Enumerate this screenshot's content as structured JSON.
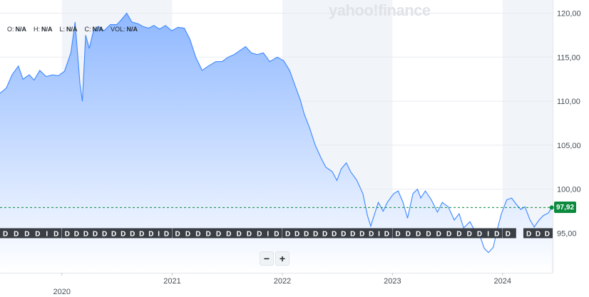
{
  "watermark": "yahoo!finance",
  "ohlc": {
    "open_label": "O:",
    "open_value": "N/A",
    "high_label": "H:",
    "high_value": "N/A",
    "low_label": "L:",
    "low_value": "N/A",
    "close_label": "C:",
    "close_value": "N/A",
    "vol_label": "VOL:",
    "vol_value": "N/A"
  },
  "zoom": {
    "minus": "−",
    "plus": "+"
  },
  "last_price": "97,92",
  "event_groups": [
    {
      "from": "2019-06-10",
      "to": "2019-12-31",
      "label": "D D D D I D"
    },
    {
      "from": "2020-01-01",
      "to": "2020-12-31",
      "label": "D D D D D D D D D D I D"
    },
    {
      "from": "2021-01-01",
      "to": "2021-12-31",
      "label": "D D D D D D D D D I D"
    },
    {
      "from": "2022-01-01",
      "to": "2022-12-31",
      "label": "D D D D D D D D D D I D"
    },
    {
      "from": "2023-01-01",
      "to": "2023-12-31",
      "label": "D D D D D D D D D I D"
    },
    {
      "from": "2024-01-01",
      "to": "2024-02-15",
      "label": "D"
    },
    {
      "from": "2024-03-10",
      "to": "2024-06-15",
      "label": "D D D"
    }
  ],
  "chart_data": {
    "type": "area",
    "xlabels": [
      "2020",
      "2021",
      "2022",
      "2023",
      "2024"
    ],
    "ylabels": [
      "95,00",
      "100,00",
      "105,00",
      "110,00",
      "115,00",
      "120,00"
    ],
    "ylim": [
      90.5,
      121.5
    ],
    "xlim": [
      "2019-06-10",
      "2024-06-15"
    ],
    "last_value": 97.92,
    "colors": {
      "line": "#3d88ff",
      "fill_top": "#8fb8ff",
      "fill_bottom": "#ffffff",
      "last_price": "#0b8a3e"
    },
    "series": [
      {
        "x": [
          "2019-06-10",
          "2019-07-01",
          "2019-07-20",
          "2019-08-10",
          "2019-08-25",
          "2019-09-15",
          "2019-10-01",
          "2019-10-20",
          "2019-11-10",
          "2019-12-01",
          "2019-12-20",
          "2020-01-10",
          "2020-01-31",
          "2020-02-14",
          "2020-03-01",
          "2020-03-09",
          "2020-03-20",
          "2020-04-01",
          "2020-04-15",
          "2020-05-01",
          "2020-05-20",
          "2020-06-10",
          "2020-07-01",
          "2020-07-15",
          "2020-08-03",
          "2020-08-20",
          "2020-09-10",
          "2020-09-25",
          "2020-10-15",
          "2020-11-01",
          "2020-11-20",
          "2020-12-10",
          "2020-12-30",
          "2021-01-20",
          "2021-02-10",
          "2021-03-01",
          "2021-03-20",
          "2021-04-10",
          "2021-05-01",
          "2021-05-25",
          "2021-06-15",
          "2021-07-05",
          "2021-07-25",
          "2021-08-15",
          "2021-09-01",
          "2021-09-20",
          "2021-10-10",
          "2021-10-30",
          "2021-11-20",
          "2021-12-15",
          "2022-01-05",
          "2022-01-25",
          "2022-02-15",
          "2022-03-01",
          "2022-03-15",
          "2022-04-01",
          "2022-04-20",
          "2022-05-10",
          "2022-05-25",
          "2022-06-15",
          "2022-07-01",
          "2022-07-15",
          "2022-08-01",
          "2022-08-15",
          "2022-09-05",
          "2022-09-25",
          "2022-10-10",
          "2022-10-21",
          "2022-11-01",
          "2022-11-15",
          "2022-12-01",
          "2022-12-15",
          "2023-01-05",
          "2023-01-20",
          "2023-02-05",
          "2023-02-20",
          "2023-03-10",
          "2023-03-25",
          "2023-04-05",
          "2023-04-20",
          "2023-05-10",
          "2023-05-30",
          "2023-06-15",
          "2023-07-05",
          "2023-07-25",
          "2023-08-10",
          "2023-08-25",
          "2023-09-15",
          "2023-10-05",
          "2023-10-20",
          "2023-11-01",
          "2023-11-15",
          "2023-12-01",
          "2023-12-15",
          "2023-12-28",
          "2024-01-15",
          "2024-01-31",
          "2024-02-15",
          "2024-03-01",
          "2024-03-15",
          "2024-04-01",
          "2024-04-15",
          "2024-05-01",
          "2024-05-15",
          "2024-06-01",
          "2024-06-12"
        ],
        "y": [
          110.9,
          111.5,
          113.0,
          114.0,
          112.5,
          113.0,
          112.4,
          113.5,
          112.8,
          113.0,
          112.9,
          113.4,
          115.5,
          119.0,
          112.0,
          110.0,
          117.5,
          116.0,
          118.0,
          118.5,
          118.0,
          118.7,
          118.7,
          119.2,
          120.0,
          119.0,
          118.8,
          118.5,
          118.3,
          118.6,
          118.2,
          118.6,
          118.0,
          118.4,
          118.3,
          117.0,
          115.0,
          113.5,
          114.0,
          114.5,
          114.5,
          115.0,
          115.3,
          115.8,
          116.2,
          115.5,
          115.3,
          115.5,
          114.5,
          115.0,
          114.6,
          113.5,
          111.5,
          110.2,
          108.5,
          107.0,
          105.0,
          103.5,
          102.5,
          102.0,
          101.0,
          102.3,
          103.0,
          102.0,
          101.0,
          99.5,
          97.0,
          95.8,
          97.0,
          98.5,
          97.5,
          98.5,
          99.5,
          99.8,
          98.5,
          96.7,
          99.5,
          100.0,
          99.0,
          99.8,
          98.8,
          97.4,
          98.5,
          98.0,
          96.5,
          97.2,
          95.6,
          96.3,
          95.0,
          94.5,
          93.3,
          92.8,
          93.4,
          95.5,
          97.2,
          98.8,
          99.0,
          98.3,
          97.7,
          98.0,
          96.5,
          95.7,
          96.5,
          97.0,
          97.3,
          97.92
        ]
      }
    ]
  }
}
